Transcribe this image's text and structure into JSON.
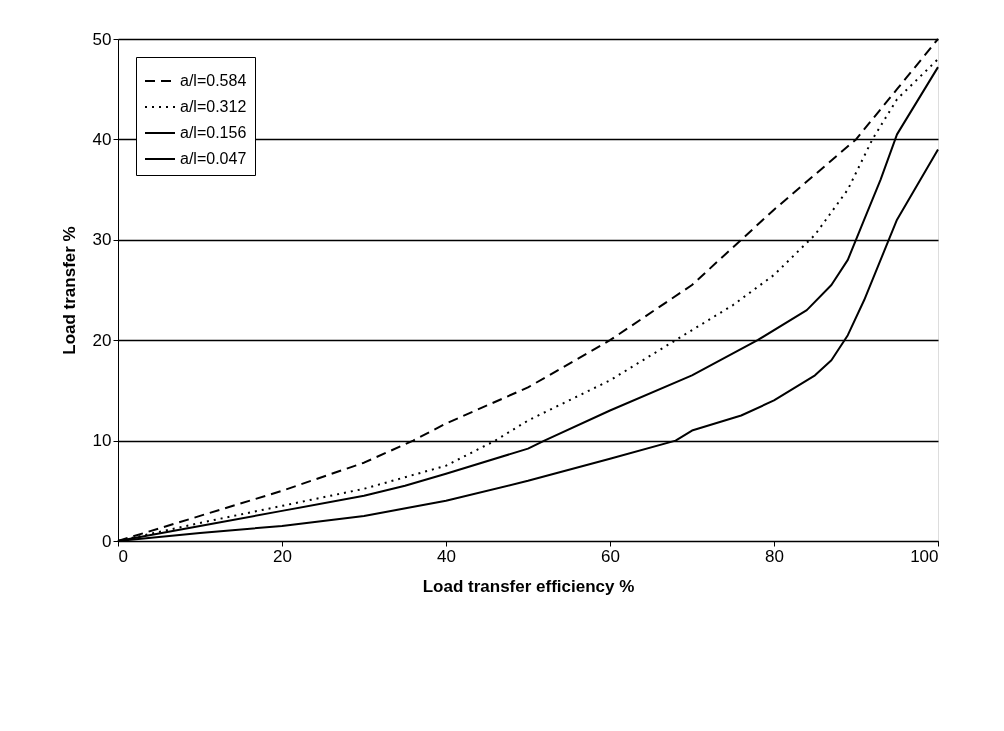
{
  "chart_data": {
    "type": "line",
    "xlabel": "Load transfer efficiency %",
    "ylabel": "Load transfer %",
    "xlim": [
      0,
      100
    ],
    "ylim": [
      0,
      50
    ],
    "xticks": [
      0,
      20,
      40,
      60,
      80,
      100
    ],
    "yticks": [
      0,
      10,
      20,
      30,
      40,
      50
    ],
    "grid": "y",
    "legend": "top left",
    "marker": "none",
    "series": [
      {
        "name": "a/l=0.584",
        "color": "#000000",
        "line_style": "dashed",
        "x": [
          0,
          10,
          20,
          30,
          36,
          40,
          50,
          60,
          70,
          76,
          80,
          85,
          90,
          95,
          100
        ],
        "values": [
          0,
          2.5,
          5,
          7.8,
          10,
          11.7,
          15.3,
          20,
          25.5,
          30,
          33,
          36.5,
          40,
          45,
          50
        ]
      },
      {
        "name": "a/l=0.312",
        "color": "#000000",
        "line_style": "dotted",
        "x": [
          0,
          10,
          20,
          30,
          40,
          46,
          50,
          60,
          68,
          75,
          80,
          85,
          89,
          92,
          95,
          100
        ],
        "values": [
          0,
          1.8,
          3.5,
          5.2,
          7.5,
          10,
          12,
          16,
          20,
          23.5,
          26.5,
          30.5,
          35,
          40,
          44,
          48
        ]
      },
      {
        "name": "a/l=0.156",
        "color": "#000000",
        "line_style": "solid",
        "x": [
          0,
          10,
          20,
          30,
          35,
          40,
          50,
          52,
          60,
          70,
          78,
          84,
          87,
          89,
          91,
          93,
          95,
          100
        ],
        "values": [
          0,
          1.5,
          3,
          4.5,
          5.5,
          6.7,
          9.2,
          10,
          13,
          16.5,
          20,
          23,
          25.5,
          28,
          32,
          36,
          40.5,
          47.2
        ]
      },
      {
        "name": "a/l=0.047",
        "color": "#000000",
        "line_style": "solid",
        "x": [
          0,
          10,
          20,
          30,
          40,
          50,
          60,
          68,
          70,
          76,
          80,
          85,
          87,
          89,
          91,
          93,
          95,
          100
        ],
        "values": [
          0,
          0.8,
          1.5,
          2.5,
          4,
          6,
          8.2,
          10,
          11,
          12.5,
          14,
          16.5,
          18,
          20.5,
          24,
          28,
          32,
          39
        ]
      }
    ]
  }
}
